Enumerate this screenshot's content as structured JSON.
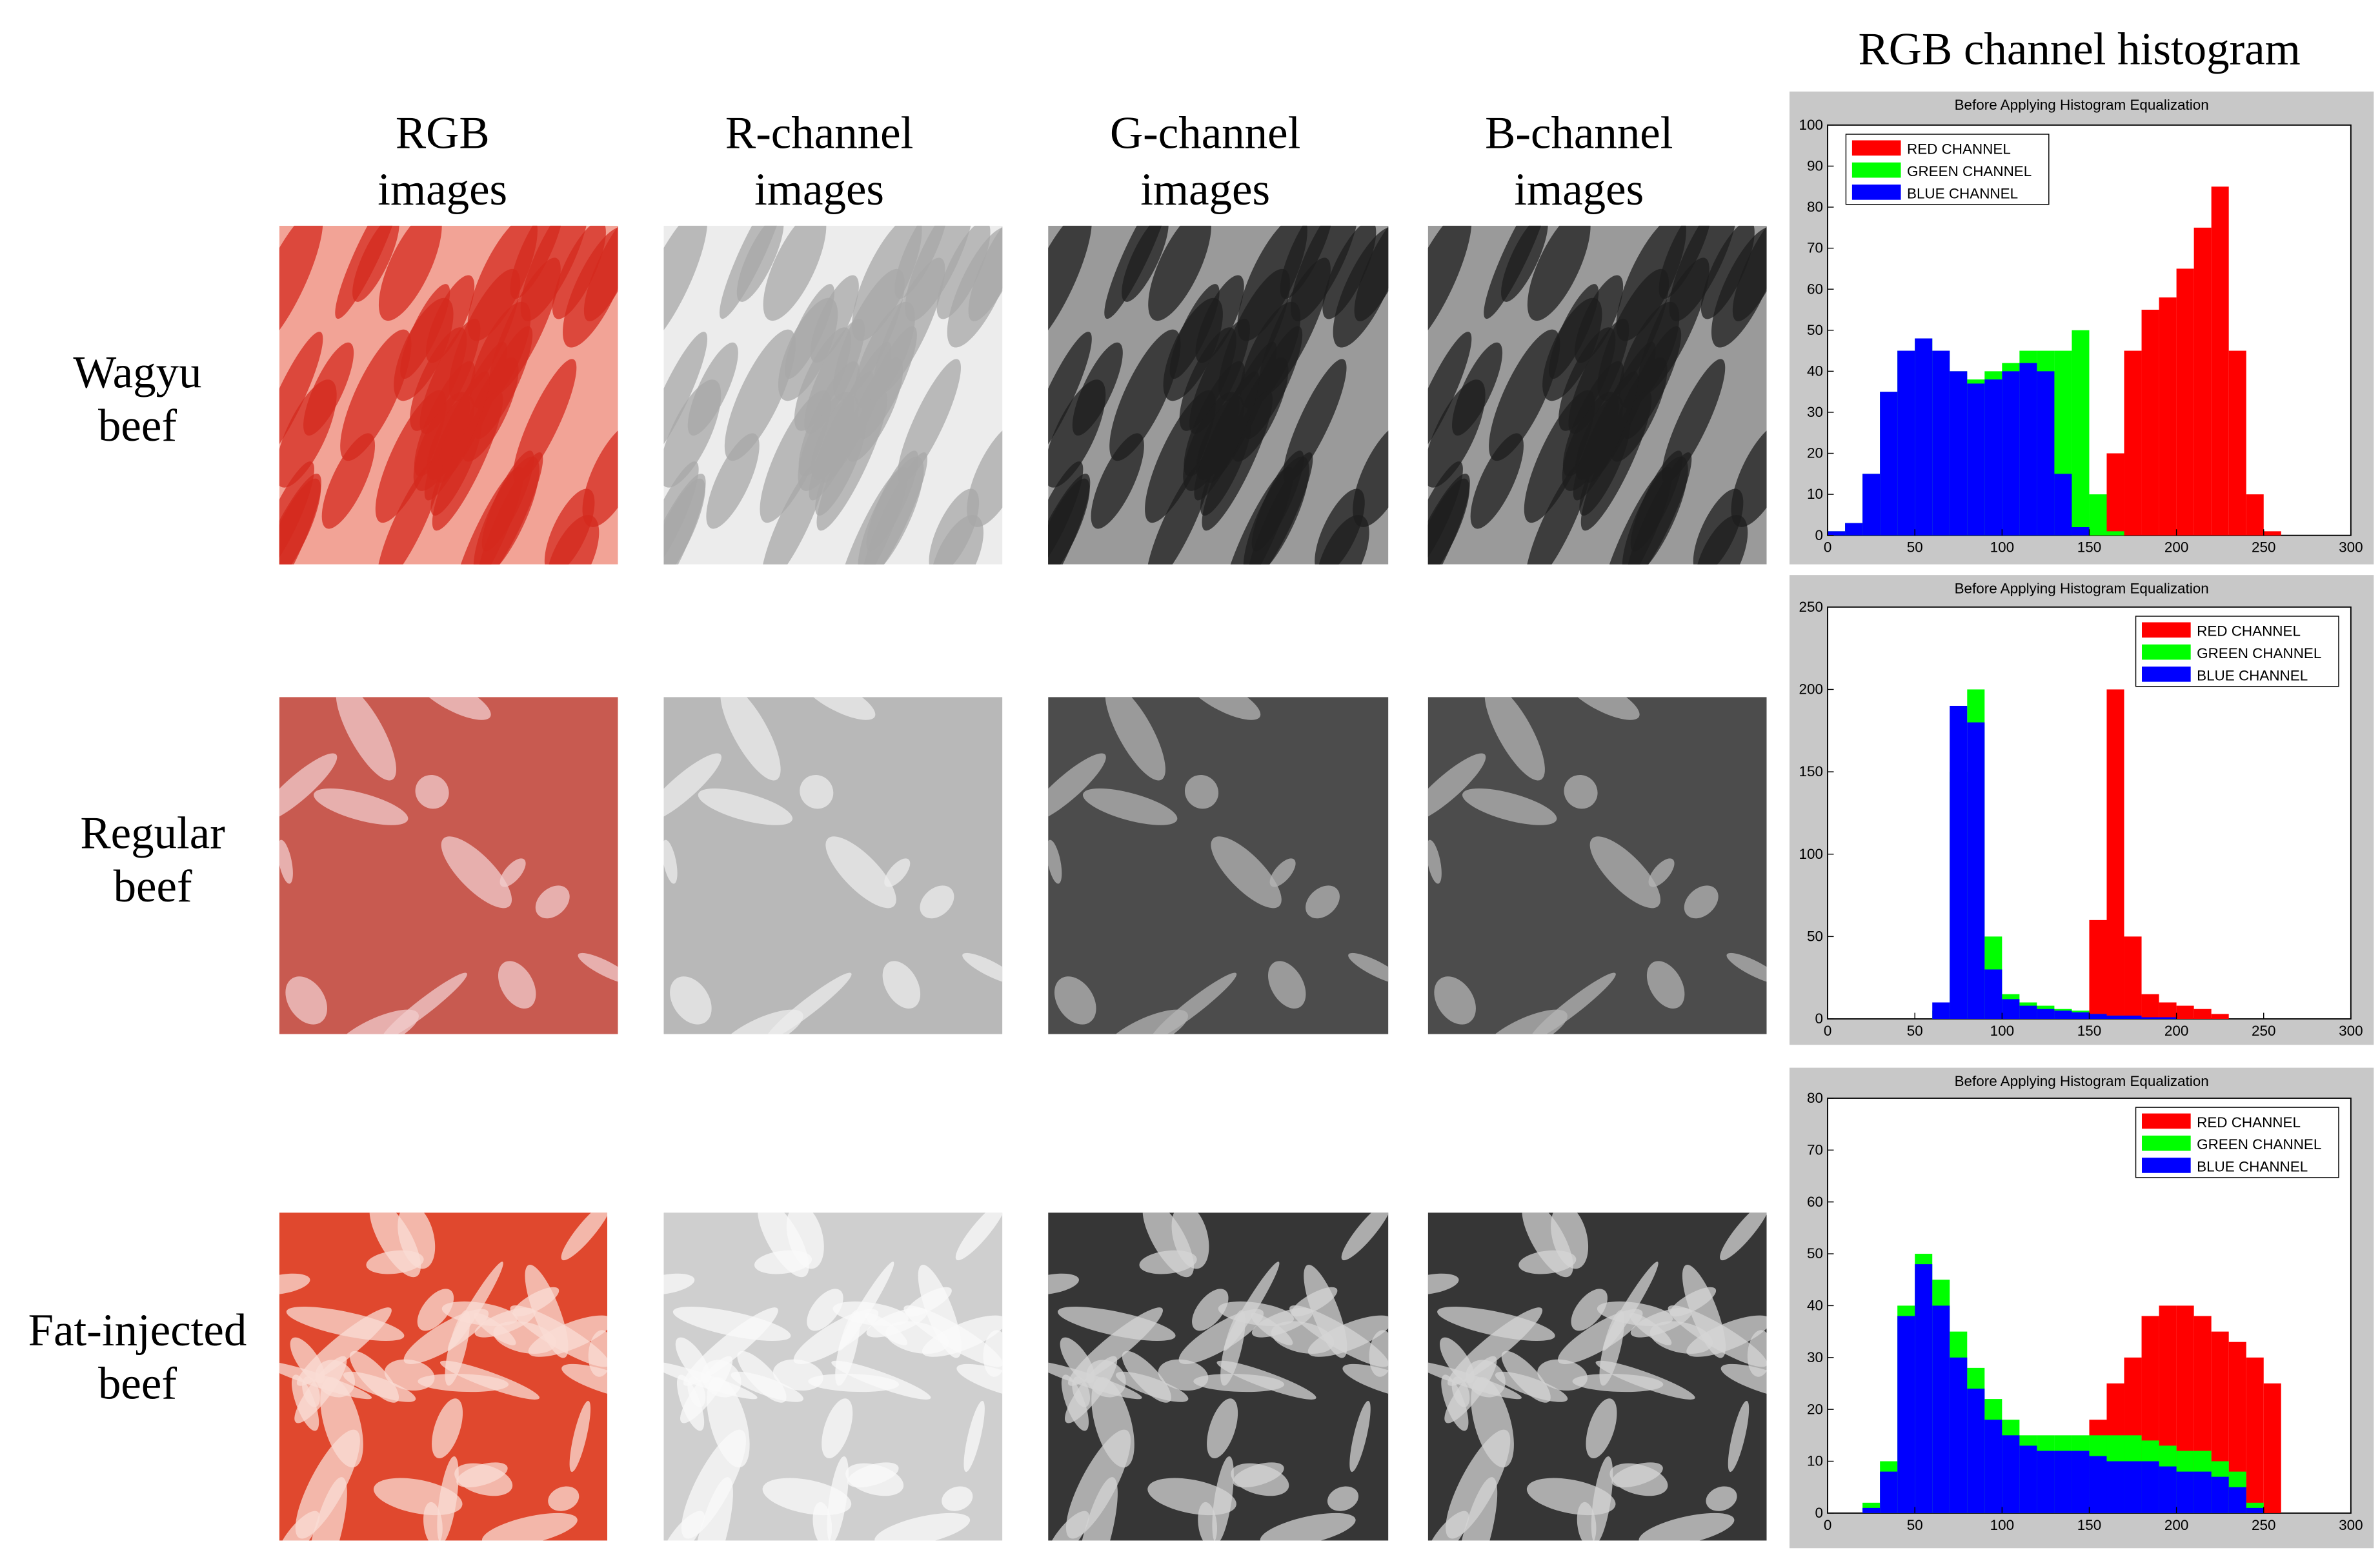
{
  "figure": {
    "column_headers": [
      {
        "lines": [
          "RGB",
          "images"
        ]
      },
      {
        "lines": [
          "R-channel",
          "images"
        ]
      },
      {
        "lines": [
          "G-channel",
          "images"
        ]
      },
      {
        "lines": [
          "B-channel",
          "images"
        ]
      }
    ],
    "row_labels": [
      {
        "lines": [
          "Wagyu",
          "beef"
        ]
      },
      {
        "lines": [
          "Regular",
          "beef"
        ]
      },
      {
        "lines": [
          "Fat-injected",
          "beef"
        ]
      }
    ],
    "histogram_header": "RGB channel histogram"
  },
  "chart_data": [
    {
      "type": "histogram",
      "title": "Before Applying Histogram Equalization",
      "bins": [
        0,
        10,
        20,
        30,
        40,
        50,
        60,
        70,
        80,
        90,
        100,
        110,
        120,
        130,
        140,
        150,
        160,
        170,
        180,
        190,
        200,
        210,
        220,
        230,
        240,
        250,
        260
      ],
      "xlim": [
        0,
        300
      ],
      "xticks": [
        0,
        50,
        100,
        150,
        200,
        250,
        300
      ],
      "ylim": [
        0,
        100
      ],
      "yticks": [
        0,
        10,
        20,
        30,
        40,
        50,
        60,
        70,
        80,
        90,
        100
      ],
      "legend": "upper left",
      "series": [
        {
          "name": "RED CHANNEL",
          "color": "#ff0000",
          "values": [
            0,
            0,
            0,
            0,
            0,
            0,
            0,
            0,
            0,
            0,
            0,
            0,
            0,
            0,
            2,
            5,
            20,
            45,
            55,
            58,
            65,
            75,
            85,
            45,
            10,
            1
          ]
        },
        {
          "name": "GREEN CHANNEL",
          "color": "#00ff00",
          "values": [
            1,
            3,
            15,
            35,
            45,
            48,
            45,
            40,
            38,
            40,
            42,
            45,
            45,
            45,
            50,
            10,
            1,
            0,
            0,
            0,
            0,
            0,
            0,
            0,
            0,
            0
          ]
        },
        {
          "name": "BLUE CHANNEL",
          "color": "#0000ff",
          "values": [
            1,
            3,
            15,
            35,
            45,
            48,
            45,
            40,
            37,
            38,
            40,
            42,
            40,
            15,
            2,
            0,
            0,
            0,
            0,
            0,
            0,
            0,
            0,
            0,
            0,
            0
          ]
        }
      ]
    },
    {
      "type": "histogram",
      "title": "Before Applying Histogram Equalization",
      "bins": [
        0,
        10,
        20,
        30,
        40,
        50,
        60,
        70,
        80,
        90,
        100,
        110,
        120,
        130,
        140,
        150,
        160,
        170,
        180,
        190,
        200,
        210,
        220,
        230,
        240,
        250,
        260
      ],
      "xlim": [
        0,
        300
      ],
      "xticks": [
        0,
        50,
        100,
        150,
        200,
        250,
        300
      ],
      "ylim": [
        0,
        250
      ],
      "yticks": [
        0,
        50,
        100,
        150,
        200,
        250
      ],
      "legend": "upper right",
      "series": [
        {
          "name": "RED CHANNEL",
          "color": "#ff0000",
          "values": [
            0,
            0,
            0,
            0,
            0,
            0,
            0,
            0,
            0,
            0,
            0,
            0,
            0,
            0,
            3,
            60,
            200,
            50,
            15,
            10,
            8,
            6,
            3,
            0,
            0,
            0
          ]
        },
        {
          "name": "GREEN CHANNEL",
          "color": "#00ff00",
          "values": [
            0,
            0,
            0,
            0,
            0,
            0,
            5,
            150,
            200,
            50,
            15,
            10,
            8,
            6,
            5,
            3,
            2,
            1,
            0,
            0,
            0,
            0,
            0,
            0,
            0,
            0
          ]
        },
        {
          "name": "BLUE CHANNEL",
          "color": "#0000ff",
          "values": [
            0,
            0,
            0,
            0,
            0,
            0,
            10,
            190,
            180,
            30,
            12,
            8,
            6,
            5,
            4,
            3,
            2,
            2,
            1,
            1,
            0,
            0,
            0,
            0,
            0,
            0
          ]
        }
      ]
    },
    {
      "type": "histogram",
      "title": "Before Applying Histogram Equalization",
      "bins": [
        0,
        10,
        20,
        30,
        40,
        50,
        60,
        70,
        80,
        90,
        100,
        110,
        120,
        130,
        140,
        150,
        160,
        170,
        180,
        190,
        200,
        210,
        220,
        230,
        240,
        250,
        260
      ],
      "xlim": [
        0,
        300
      ],
      "xticks": [
        0,
        50,
        100,
        150,
        200,
        250,
        300
      ],
      "ylim": [
        0,
        80
      ],
      "yticks": [
        0,
        10,
        20,
        30,
        40,
        50,
        60,
        70,
        80
      ],
      "legend": "upper right",
      "series": [
        {
          "name": "RED CHANNEL",
          "color": "#ff0000",
          "values": [
            0,
            0,
            0,
            0,
            0,
            0,
            0,
            0,
            0,
            0,
            0,
            0,
            0,
            3,
            10,
            18,
            25,
            30,
            38,
            40,
            40,
            38,
            35,
            33,
            30,
            25
          ]
        },
        {
          "name": "GREEN CHANNEL",
          "color": "#00ff00",
          "values": [
            0,
            0,
            2,
            10,
            40,
            50,
            45,
            35,
            28,
            22,
            18,
            15,
            15,
            15,
            15,
            15,
            15,
            15,
            14,
            13,
            12,
            12,
            10,
            8,
            2,
            0
          ]
        },
        {
          "name": "BLUE CHANNEL",
          "color": "#0000ff",
          "values": [
            0,
            0,
            1,
            8,
            38,
            48,
            40,
            30,
            24,
            18,
            15,
            13,
            12,
            12,
            12,
            11,
            10,
            10,
            10,
            9,
            8,
            8,
            7,
            5,
            1,
            0
          ]
        }
      ]
    }
  ]
}
